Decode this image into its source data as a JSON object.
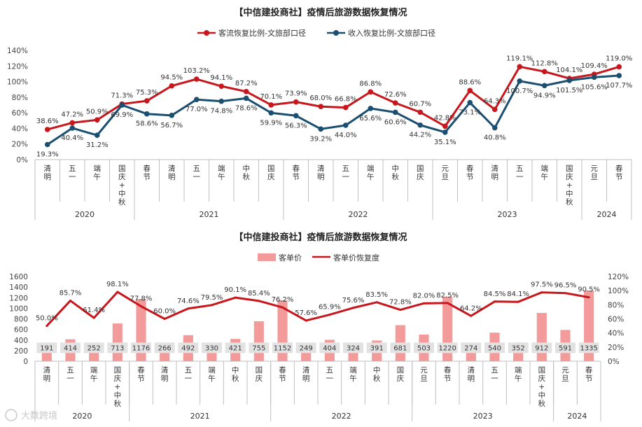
{
  "colors": {
    "red": "#c8161d",
    "navy": "#1b4f72",
    "bar": "#f39a9a",
    "box": "#e2e2e2",
    "axis": "#bfbfbf"
  },
  "watermark": "大数跨境",
  "chart_data": [
    {
      "type": "line",
      "title": "【中信建投商社】疫情后旅游数据恢复情况",
      "categories": [
        "清明",
        "五一",
        "端午",
        "国庆+中秋",
        "春节",
        "清明",
        "五一",
        "端午",
        "中秋",
        "国庆",
        "春节",
        "清明",
        "五一",
        "端午",
        "中秋",
        "国庆",
        "元旦",
        "春节",
        "清明",
        "五一",
        "端午",
        "国庆+中秋",
        "元旦",
        "春节"
      ],
      "year_groups": [
        {
          "label": "2020",
          "count": 4
        },
        {
          "label": "2021",
          "count": 6
        },
        {
          "label": "2022",
          "count": 6
        },
        {
          "label": "2023",
          "count": 6
        },
        {
          "label": "2024",
          "count": 2
        }
      ],
      "y_ticks": [
        "0%",
        "20%",
        "40%",
        "60%",
        "80%",
        "100%",
        "120%",
        "140%"
      ],
      "ylim": [
        0,
        140
      ],
      "series": [
        {
          "name": "客流恢复比例-文旅部口径",
          "values": [
            38.6,
            47.2,
            50.9,
            71.3,
            75.3,
            94.5,
            103.2,
            94.1,
            87.2,
            70.1,
            73.9,
            68.0,
            66.8,
            86.8,
            72.6,
            60.7,
            42.8,
            88.6,
            64.3,
            119.1,
            112.8,
            104.1,
            109.4,
            119.0
          ],
          "labels": [
            "38.6%",
            "47.2%",
            "50.9%",
            "71.3%",
            "75.3%",
            "94.5%",
            "103.2%",
            "94.1%",
            "87.2%",
            "70.1%",
            "73.9%",
            "68.0%",
            "66.8%",
            "86.8%",
            "72.6%",
            "60.7%",
            "42.8%",
            "88.6%",
            "64.3%",
            "119.1%",
            "112.8%",
            "104.1%",
            "109.4%",
            "119.0%"
          ]
        },
        {
          "name": "收入恢复比例-文旅部口径",
          "values": [
            19.3,
            40.4,
            31.2,
            69.9,
            58.6,
            56.7,
            77.0,
            74.8,
            78.6,
            59.9,
            56.3,
            39.2,
            44.0,
            65.6,
            60.6,
            44.2,
            35.1,
            73.1,
            40.8,
            100.7,
            94.9,
            101.5,
            105.6,
            107.7
          ],
          "labels": [
            "19.3%",
            "40.4%",
            "31.2%",
            "69.9%",
            "58.6%",
            "56.7%",
            "77.0%",
            "74.8%",
            "78.6%",
            "59.9%",
            "56.3%",
            "39.2%",
            "44.0%",
            "65.6%",
            "60.6%",
            "44.2%",
            "35.1%",
            "73.1%",
            "40.8%",
            "100.7%",
            "94.9%",
            "101.5%",
            "105.6%",
            "107.7%"
          ]
        }
      ]
    },
    {
      "type": "bar+line",
      "title": "【中信建投商社】疫情后旅游数据恢复情况",
      "categories": [
        "清明",
        "五一",
        "端午",
        "国庆+中秋",
        "春节",
        "清明",
        "五一",
        "端午",
        "中秋",
        "国庆",
        "春节",
        "清明",
        "五一",
        "端午",
        "中秋",
        "国庆",
        "元旦",
        "春节",
        "清明",
        "五一",
        "端午",
        "国庆+中秋",
        "元旦",
        "春节"
      ],
      "year_groups": [
        {
          "label": "2020",
          "count": 4
        },
        {
          "label": "2021",
          "count": 6
        },
        {
          "label": "2022",
          "count": 6
        },
        {
          "label": "2023",
          "count": 6
        },
        {
          "label": "2024",
          "count": 2
        }
      ],
      "y_left_ticks": [
        "0",
        "200",
        "400",
        "600",
        "800",
        "1000",
        "1200",
        "1400",
        "1600"
      ],
      "y_right_ticks": [
        "0%",
        "20%",
        "40%",
        "60%",
        "80%",
        "100%",
        "120%"
      ],
      "ylim_left": [
        0,
        1600
      ],
      "ylim_right": [
        0,
        120
      ],
      "bar_series": {
        "name": "客单价",
        "values": [
          191,
          414,
          252,
          713,
          1176,
          266,
          492,
          330,
          421,
          755,
          1152,
          249,
          404,
          324,
          391,
          681,
          503,
          1220,
          274,
          540,
          352,
          912,
          591,
          1335
        ],
        "labels": [
          "191",
          "414",
          "252",
          "713",
          "1176",
          "266",
          "492",
          "330",
          "421",
          "755",
          "1152",
          "249",
          "404",
          "324",
          "391",
          "681",
          "503",
          "1220",
          "274",
          "540",
          "352",
          "912",
          "591",
          "1335"
        ]
      },
      "line_series": {
        "name": "客单价恢复度",
        "values": [
          50.0,
          85.7,
          61.4,
          98.1,
          77.8,
          60.0,
          74.6,
          79.5,
          90.1,
          85.4,
          76.2,
          57.6,
          65.9,
          75.6,
          83.5,
          72.8,
          82.0,
          82.5,
          64.2,
          84.5,
          84.1,
          97.5,
          96.5,
          90.5
        ],
        "labels": [
          "50.0%",
          "85.7%",
          "61.4%",
          "98.1%",
          "77.8%",
          "60.0%",
          "74.6%",
          "79.5%",
          "90.1%",
          "85.4%",
          "76.2%",
          "57.6%",
          "65.9%",
          "75.6%",
          "83.5%",
          "72.8%",
          "82.0%",
          "82.5%",
          "64.2%",
          "84.5%",
          "84.1%",
          "97.5%",
          "96.5%",
          "90.5%"
        ]
      }
    }
  ]
}
